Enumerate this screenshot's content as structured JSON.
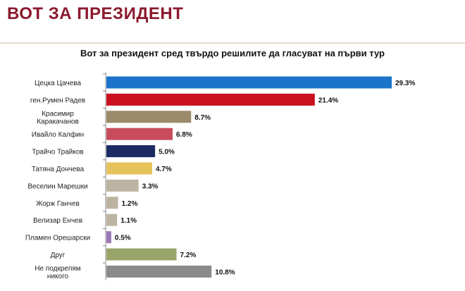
{
  "header": {
    "title": "ВОТ ЗА ПРЕЗИДЕНТ"
  },
  "chart_data": {
    "type": "bar",
    "orientation": "horizontal",
    "title": "Вот за президент сред твърдо решилите да гласуват на първи тур",
    "xlabel": "",
    "ylabel": "",
    "grid": false,
    "categories": [
      [
        "Цецка Цачева"
      ],
      [
        "ген.Румен Радев"
      ],
      [
        "Красимир",
        "Каракачанов"
      ],
      [
        "Ивайло Калфин"
      ],
      [
        "Трайчо Трайков"
      ],
      [
        "Татяна Дончева"
      ],
      [
        "Веселин Марешки"
      ],
      [
        "Жорж Ганчев"
      ],
      [
        "Велизар Енчев"
      ],
      [
        "Пламен Орешарски"
      ],
      [
        "Друг"
      ],
      [
        "Не подкрепям",
        "никого"
      ]
    ],
    "values": [
      29.3,
      21.4,
      8.7,
      6.8,
      5.0,
      4.7,
      3.3,
      1.2,
      1.1,
      0.5,
      7.2,
      10.8
    ],
    "value_labels": [
      "29.3%",
      "21.4%",
      "8.7%",
      "6.8%",
      "5.0%",
      "4.7%",
      "3.3%",
      "1.2%",
      "1.1%",
      "0.5%",
      "7.2%",
      "10.8%"
    ],
    "colors": [
      "#1a74c9",
      "#c8101e",
      "#9b8b6a",
      "#c84c5c",
      "#1c2a64",
      "#e6c35a",
      "#bdb3a3",
      "#bdb3a3",
      "#bdb3a3",
      "#9a78b8",
      "#9aa56a",
      "#8a8a8a"
    ],
    "xlim": [
      0,
      29.3
    ]
  }
}
